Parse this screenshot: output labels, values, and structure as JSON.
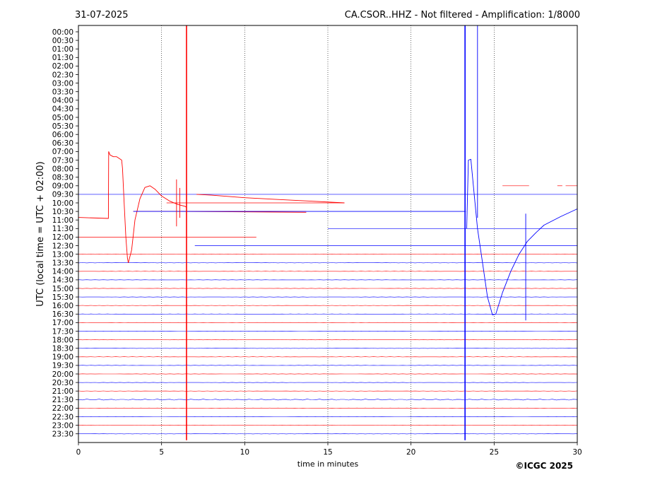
{
  "header": {
    "date": "31-07-2025",
    "title": "CA.CSOR..HHZ - Not filtered - Amplification: 1/8000"
  },
  "footer": {
    "copyright": "©ICGC 2025"
  },
  "chart_data": {
    "type": "line",
    "chart_kind": "helicorder seismogram",
    "xlabel": "time in minutes",
    "ylabel": "UTC (local time = UTC + 02:00)",
    "xlim": [
      0,
      30
    ],
    "x_ticks": [
      0,
      5,
      10,
      15,
      20,
      25,
      30
    ],
    "y_ticks": [
      "00:00",
      "00:30",
      "01:00",
      "01:30",
      "02:00",
      "02:30",
      "03:00",
      "03:30",
      "04:00",
      "04:30",
      "05:00",
      "05:30",
      "06:00",
      "06:30",
      "07:00",
      "07:30",
      "08:00",
      "08:30",
      "09:00",
      "09:30",
      "10:00",
      "10:30",
      "11:00",
      "11:30",
      "12:00",
      "12:30",
      "13:00",
      "13:30",
      "14:00",
      "14:30",
      "15:00",
      "15:30",
      "16:00",
      "16:30",
      "17:00",
      "17:30",
      "18:00",
      "18:30",
      "19:00",
      "19:30",
      "20:00",
      "20:30",
      "21:00",
      "21:30",
      "22:00",
      "22:30",
      "23:00",
      "23:30"
    ],
    "grid": {
      "vertical_dotted_at_minutes": [
        5,
        10,
        15,
        20,
        25
      ],
      "horizontal": false
    },
    "trace_colors": {
      "even_rows": "#ff0000",
      "odd_rows": "#0000ff"
    },
    "series": [
      {
        "color": "#ff0000",
        "points": [
          [
            0,
            -0.3
          ],
          [
            1.8,
            -0.18
          ],
          [
            1.82,
            -8.0
          ],
          [
            1.9,
            -7.6
          ],
          [
            2.1,
            -7.4
          ],
          [
            2.3,
            -7.4
          ],
          [
            2.45,
            -7.2
          ],
          [
            2.6,
            -7.0
          ],
          [
            2.65,
            -6.0
          ],
          [
            2.75,
            -2.0
          ],
          [
            2.85,
            2.0
          ],
          [
            2.95,
            4.5
          ],
          [
            3.0,
            5.0
          ]
        ],
        "row": "11:00"
      },
      {
        "color": "#ff0000",
        "points": [
          [
            3.0,
            5.0
          ],
          [
            3.2,
            3.5
          ],
          [
            3.4,
            0.0
          ],
          [
            3.7,
            -2.5
          ],
          [
            4.0,
            -3.8
          ],
          [
            4.3,
            -4.0
          ],
          [
            4.6,
            -3.6
          ],
          [
            5.0,
            -2.8
          ],
          [
            5.5,
            -2.2
          ],
          [
            6.0,
            -1.8
          ],
          [
            6.4,
            -1.6
          ],
          [
            6.5,
            -1.5
          ]
        ],
        "row": "11:00"
      },
      {
        "color": "#ff0000",
        "points": [
          [
            7.1,
            -1.0
          ],
          [
            8.0,
            -0.9
          ],
          [
            10.0,
            -0.6
          ],
          [
            12.0,
            -0.4
          ],
          [
            14.0,
            -0.2
          ],
          [
            16.0,
            0.0
          ]
        ],
        "row": "10:00"
      },
      {
        "color": "#ff0000",
        "points": [
          [
            3.3,
            0.0
          ],
          [
            6.0,
            0.0
          ],
          [
            10.0,
            0.05
          ],
          [
            13.7,
            0.1
          ]
        ],
        "row": "10:30"
      },
      {
        "color": "#0000ff",
        "points": [
          [
            23.35,
            0.0
          ],
          [
            23.45,
            -8.0
          ],
          [
            23.6,
            -8.1
          ],
          [
            23.8,
            -4.0
          ],
          [
            24.0,
            0.0
          ],
          [
            24.3,
            4.0
          ],
          [
            24.6,
            8.0
          ],
          [
            24.9,
            10.1
          ],
          [
            25.1,
            10.0
          ],
          [
            25.5,
            7.5
          ],
          [
            26.0,
            5.0
          ],
          [
            26.5,
            3.0
          ],
          [
            27.0,
            1.5
          ],
          [
            27.5,
            0.5
          ],
          [
            28.0,
            -0.4
          ],
          [
            29.0,
            -1.4
          ],
          [
            30.0,
            -2.3
          ]
        ],
        "row": "11:30"
      },
      {
        "color": "#0000ff",
        "points": [
          [
            3.3,
            0.0
          ],
          [
            10.0,
            0.0
          ],
          [
            20.0,
            0.0
          ],
          [
            23.3,
            0.0
          ]
        ],
        "row": "10:30"
      }
    ],
    "spikes": [
      {
        "row": "10:00",
        "minute": 6.5,
        "color": "#ff0000",
        "top_row": "00:00",
        "bottom_row": "23:30"
      },
      {
        "row": "10:30",
        "minute": 23.25,
        "color": "#0000ff",
        "top_row": "00:00",
        "bottom_row": "23:30"
      },
      {
        "row": "09:30",
        "minute": 24.0,
        "color": "#0000ff",
        "top_row": "00:00",
        "bottom_row": "10:30"
      },
      {
        "row": "12:00",
        "minute": 26.9,
        "color": "#0000ff",
        "top_row": "11:00",
        "bottom_row": "16:30"
      },
      {
        "row": "10:00",
        "minute": 5.9,
        "color": "#ff0000",
        "top_row": "09:00",
        "bottom_row": "11:00"
      },
      {
        "row": "10:00",
        "minute": 6.1,
        "color": "#ff0000",
        "top_row": "09:30",
        "bottom_row": "10:30"
      }
    ],
    "partial_rows": [
      {
        "row": "09:00",
        "color": "#ff0000",
        "segments": [
          [
            25.5,
            27.1
          ],
          [
            28.8,
            29.1
          ],
          [
            29.3,
            30.0
          ]
        ]
      },
      {
        "row": "10:00",
        "color": "#ff0000",
        "segments": [
          [
            0,
            0
          ],
          [
            5.3,
            16.0
          ]
        ]
      },
      {
        "row": "10:30",
        "color": "#ff0000",
        "segments": [
          [
            3.3,
            13.7
          ]
        ]
      },
      {
        "row": "11:30",
        "color": "#0000ff",
        "segments": [
          [
            15.0,
            30.0
          ]
        ]
      },
      {
        "row": "12:00",
        "color": "#ff0000",
        "segments": [
          [
            0,
            10.7
          ]
        ]
      },
      {
        "row": "12:30",
        "color": "#0000ff",
        "segments": [
          [
            7.0,
            30.0
          ]
        ]
      }
    ],
    "full_rows_from": "13:00"
  }
}
